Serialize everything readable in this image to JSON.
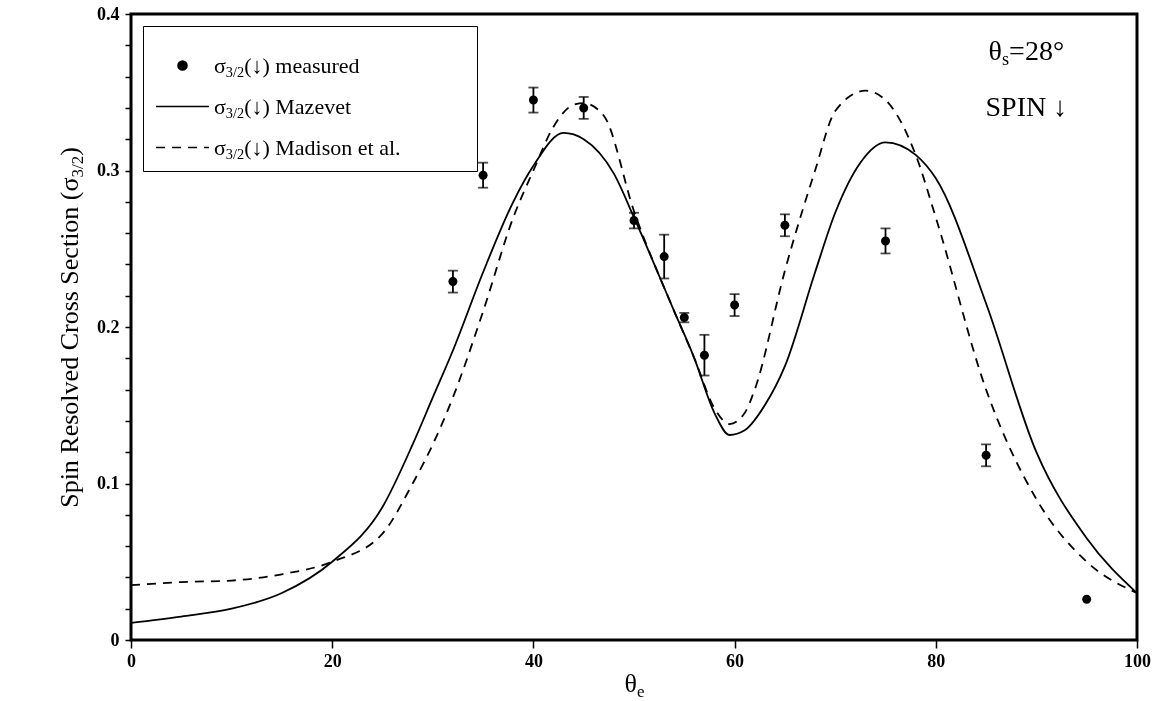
{
  "chart_data": {
    "type": "line",
    "xlabel": "θ$_{e}$",
    "ylabel": "Spin Resolved Cross Section (σ$_{3/2}$)",
    "annotations": [
      "θ$_{s}$=28°",
      "SPIN ↓"
    ],
    "xlim": [
      0,
      100
    ],
    "xticks": [
      0,
      20,
      40,
      60,
      80,
      100
    ],
    "ylim": [
      0,
      0.4
    ],
    "yticks": [
      0,
      {
        "value": 0.02,
        "label": null
      },
      {
        "value": 0.04,
        "label": null
      },
      {
        "value": 0.06,
        "label": null
      },
      {
        "value": 0.08,
        "label": null
      },
      0.1,
      {
        "value": 0.12,
        "label": null
      },
      {
        "value": 0.14,
        "label": null
      },
      {
        "value": 0.16,
        "label": null
      },
      {
        "value": 0.18,
        "label": null
      },
      0.2,
      {
        "value": 0.22,
        "label": null
      },
      {
        "value": 0.24,
        "label": null
      },
      {
        "value": 0.26,
        "label": null
      },
      {
        "value": 0.28,
        "label": null
      },
      0.3,
      {
        "value": 0.32,
        "label": null
      },
      {
        "value": 0.34,
        "label": null
      },
      {
        "value": 0.36,
        "label": null
      },
      {
        "value": 0.38,
        "label": null
      },
      0.4
    ],
    "grid": false,
    "legend": "top left",
    "series": [
      {
        "name": "σ$_{3/2}$(↓) measured",
        "type": "scatter",
        "marker": "circle",
        "color": "#000000",
        "x": [
          32,
          35,
          40,
          45,
          50,
          53,
          55,
          57,
          60,
          65,
          75,
          85,
          95
        ],
        "values": [
          0.229,
          0.297,
          0.345,
          0.34,
          0.268,
          0.245,
          0.206,
          0.182,
          0.214,
          0.265,
          0.255,
          0.118,
          0.026
        ],
        "errors": [
          0.007,
          0.008,
          0.008,
          0.007,
          0.005,
          0.014,
          0.003,
          0.013,
          0.007,
          0.007,
          0.008,
          0.007,
          null
        ]
      },
      {
        "name": "σ$_{3/2}$(↓) Mazevet",
        "type": "line",
        "line_style": "solid",
        "color": "#000000",
        "x": [
          0,
          5,
          10,
          15,
          20,
          25,
          28,
          30,
          32,
          35,
          38,
          40,
          43,
          45,
          48,
          50,
          54,
          56,
          58,
          59.5,
          61,
          63,
          65,
          68,
          70,
          72.5,
          75,
          78,
          80,
          85,
          90,
          95,
          100
        ],
        "values": [
          0.011,
          0.015,
          0.02,
          0.03,
          0.05,
          0.085,
          0.125,
          0.155,
          0.185,
          0.235,
          0.28,
          0.303,
          0.324,
          0.32,
          0.298,
          0.27,
          0.21,
          0.18,
          0.145,
          0.131,
          0.134,
          0.15,
          0.175,
          0.235,
          0.273,
          0.305,
          0.318,
          0.31,
          0.295,
          0.215,
          0.12,
          0.065,
          0.03
        ]
      },
      {
        "name": "σ$_{3/2}$(↓) Madison et al.",
        "type": "line",
        "line_style": "dashed",
        "color": "#000000",
        "x": [
          0,
          5,
          10,
          15,
          20,
          25,
          28,
          30,
          32,
          35,
          38,
          40,
          42,
          44,
          45,
          47,
          50,
          54,
          56,
          58,
          59.5,
          61,
          62,
          65,
          68,
          70,
          73,
          75,
          78,
          80,
          85,
          90,
          95,
          100
        ],
        "values": [
          0.035,
          0.037,
          0.038,
          0.042,
          0.05,
          0.068,
          0.1,
          0.125,
          0.155,
          0.21,
          0.27,
          0.3,
          0.328,
          0.342,
          0.343,
          0.335,
          0.274,
          0.21,
          0.18,
          0.148,
          0.138,
          0.145,
          0.16,
          0.236,
          0.3,
          0.338,
          0.351,
          0.345,
          0.31,
          0.27,
          0.16,
          0.09,
          0.05,
          0.03
        ]
      }
    ]
  }
}
